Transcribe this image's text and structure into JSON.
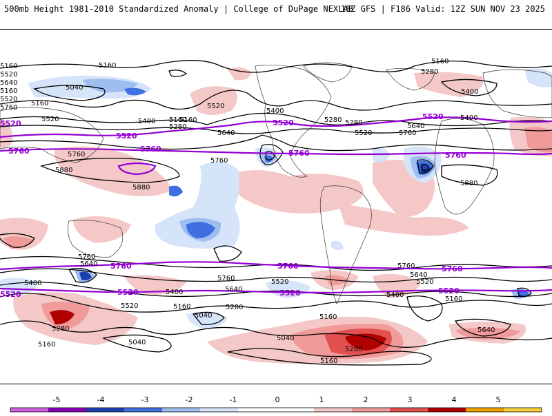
{
  "header": {
    "title": "500mb Height 1981-2010 Standardized Anomaly | College of DuPage NEXLAB",
    "run_info": "18Z GFS | F186 Valid: 12Z SUN NOV 23 2025"
  },
  "colorbar": {
    "ticks": [
      "-5",
      "-4",
      "-3",
      "-2",
      "-1",
      "0",
      "1",
      "2",
      "3",
      "4",
      "5"
    ],
    "colors": [
      "#d060e0",
      "#8a00b8",
      "#1e3fb0",
      "#3f6fe0",
      "#9fbef0",
      "#d6e4fa",
      "#ffffff",
      "#ffffff",
      "#f5c8c8",
      "#f09a9a",
      "#e25050",
      "#b00000",
      "#f0a000",
      "#f8d040"
    ]
  },
  "contours": {
    "black_labels": [
      "5160",
      "5040",
      "5160",
      "5520",
      "5400",
      "5160",
      "5280",
      "5640",
      "5760",
      "5880",
      "5880",
      "5760",
      "5520",
      "5400",
      "5160",
      "5280",
      "5520",
      "5400",
      "5640",
      "5760",
      "5880",
      "5280",
      "5160",
      "5400",
      "5160",
      "5280",
      "5520",
      "5640",
      "5760",
      "5160",
      "5760",
      "5640",
      "5400",
      "5520",
      "5280",
      "5040",
      "5160",
      "5280",
      "5040",
      "5160",
      "5520",
      "5640",
      "5400",
      "5520",
      "5640",
      "5760",
      "5160",
      "5160",
      "5040",
      "5280",
      "5160",
      "5520",
      "5400",
      "5760",
      "5640"
    ],
    "purple_labels": [
      "5520",
      "5520",
      "5760",
      "5760",
      "5520",
      "5760",
      "5520",
      "5760",
      "5760",
      "5760",
      "5520",
      "5520",
      "5520",
      "5760",
      "5520"
    ]
  }
}
